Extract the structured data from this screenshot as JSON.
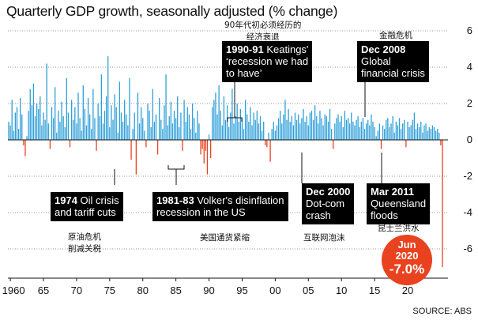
{
  "chart_data": {
    "type": "bar",
    "title": "Quarterly GDP growth, seasonally adjusted (% change)",
    "ylim": [
      -7,
      7
    ],
    "y_ticks": [
      6,
      4,
      2,
      0,
      -2,
      -4,
      -6
    ],
    "x_tick_labels": [
      "1960",
      "65",
      "70",
      "75",
      "80",
      "85",
      "90",
      "95",
      "00",
      "05",
      "10",
      "15",
      "20"
    ],
    "grid": true,
    "colors": {
      "positive": "#2e9fd9",
      "negative": "#e8421f",
      "grid": "#999999",
      "annotation_bg": "#000000",
      "highlight": "#e8421f"
    },
    "series": [
      {
        "start": "1959-Q4",
        "frequency": "quarterly",
        "unit": "%",
        "values": [
          1.0,
          0.8,
          2.2,
          0.5,
          1.5,
          1.8,
          0.6,
          2.3,
          1.4,
          -0.3,
          -0.9,
          0.2,
          1.6,
          2.8,
          1.9,
          3.1,
          1.3,
          2.0,
          1.7,
          2.4,
          0.8,
          1.5,
          1.1,
          4.2,
          0.9,
          -0.5,
          1.8,
          1.2,
          2.9,
          0.4,
          1.6,
          1.0,
          2.1,
          1.3,
          0.7,
          3.4,
          1.5,
          -0.4,
          2.2,
          1.1,
          1.8,
          0.9,
          2.6,
          1.2,
          0.5,
          3.0,
          1.7,
          0.8,
          2.3,
          1.4,
          0.6,
          2.8,
          1.2,
          -0.6,
          2.0,
          1.3,
          3.6,
          0.9,
          1.6,
          2.4,
          4.6,
          0.7,
          1.9,
          1.1,
          2.5,
          1.8,
          0.4,
          3.2,
          1.5,
          1.0,
          2.2,
          1.4,
          0.8,
          3.4,
          -1.1,
          0.6,
          1.5,
          -1.9,
          2.6,
          0.9,
          1.8,
          1.2,
          0.5,
          -0.4,
          2.0,
          1.6,
          0.7,
          2.8,
          1.0,
          1.4,
          -0.8,
          2.3,
          1.1,
          0.6,
          1.9,
          3.6,
          0.8,
          1.3,
          2.1,
          0.9,
          1.6,
          1.2,
          2.4,
          0.7,
          1.5,
          -0.6,
          2.2,
          1.0,
          1.8,
          1.4,
          0.6,
          2.0,
          1.2,
          0.4,
          1.6,
          0.9,
          -0.8,
          -0.5,
          -1.3,
          -0.6,
          -1.9,
          0.3,
          -1.0,
          1.8,
          2.2,
          2.6,
          1.4,
          3.0,
          1.6,
          0.8,
          2.4,
          1.1,
          1.9,
          0.7,
          1.5,
          2.8,
          0.9,
          1.3,
          2.0,
          1.0,
          1.7,
          1.2,
          0.6,
          2.2,
          1.4,
          1.0,
          1.8,
          0.8,
          1.5,
          1.1,
          1.6,
          0.9,
          1.3,
          0.5,
          1.0,
          -0.3,
          -0.4,
          0.4,
          -1.2,
          0.6,
          1.0,
          0.5,
          0.8,
          1.2,
          1.6,
          0.9,
          1.4,
          2.2,
          1.1,
          1.7,
          1.0,
          1.3,
          0.8,
          1.5,
          1.1,
          1.4,
          0.9,
          1.2,
          1.7,
          1.0,
          1.3,
          0.8,
          1.5,
          1.6,
          1.1,
          1.9,
          1.3,
          0.9,
          1.6,
          1.2,
          0.8,
          1.4,
          1.3,
          1.0,
          1.7,
          0.6,
          -0.5,
          0.9,
          1.2,
          1.4,
          1.0,
          1.3,
          0.7,
          1.6,
          1.1,
          1.2,
          0.9,
          1.5,
          1.0,
          0.8,
          1.1,
          1.3,
          0.7,
          1.0,
          1.2,
          0.6,
          0.9,
          1.1,
          0.8,
          1.4,
          1.0,
          0.7,
          0.2,
          0.5,
          0.9,
          -0.5,
          0.8,
          0.6,
          1.1,
          1.2,
          0.7,
          0.9,
          1.3,
          0.4,
          1.0,
          0.8,
          1.2,
          0.6,
          0.9,
          1.1,
          -0.4,
          1.0,
          0.7,
          0.8,
          1.1,
          1.5,
          0.6,
          0.9,
          0.7,
          1.0,
          0.4,
          0.8,
          0.9,
          0.5,
          0.7,
          0.6,
          0.8,
          0.7,
          0.5,
          0.6,
          0.4,
          -0.3,
          -7.0
        ]
      }
    ],
    "annotations": [
      {
        "date": "1974",
        "text": "Oil crisis and tariff cuts",
        "cn": "原油危机\n削减关税"
      },
      {
        "date": "1981-83",
        "text": "Volker's disinflation recession in the US",
        "cn": "美国通货紧缩"
      },
      {
        "date": "1990-91",
        "text": "Keatings' ‘recession we had to have’",
        "cn": "90年代初必须经历的\n经济衰退"
      },
      {
        "date": "Dec 2000",
        "text": "Dot-com crash",
        "cn": "互联网泡沫"
      },
      {
        "date": "Dec 2008",
        "text": "Global financial crisis",
        "cn": "金融危机"
      },
      {
        "date": "Mar 2011",
        "text": "Queensland floods",
        "cn": "昆士兰洪水"
      }
    ],
    "highlight": {
      "date": "Jun 2020",
      "value": "-7.0%"
    },
    "source": "SOURCE: ABS"
  },
  "ann_lines": {
    "a1974_1": "Oil crisis",
    "a1974_2": "and tariff cuts",
    "a1981_1": "Volker's disinflation",
    "a1981_2": "recession in the US",
    "a1990_1": "Keatings'",
    "a1990_2": "‘recession we had",
    "a1990_3": "to have’",
    "a2000_1": "Dot-com",
    "a2000_2": "crash",
    "a2008_1": "Global",
    "a2008_2": "financial crisis",
    "a2011_1": "Queensland",
    "a2011_2": "floods",
    "cn1974_1": "原油危机",
    "cn1974_2": "削减关税",
    "cn1990_1": "90年代初必须经历的",
    "cn1990_2": "经济衰退",
    "hl_date_1": "Jun",
    "hl_date_2": "2020"
  }
}
